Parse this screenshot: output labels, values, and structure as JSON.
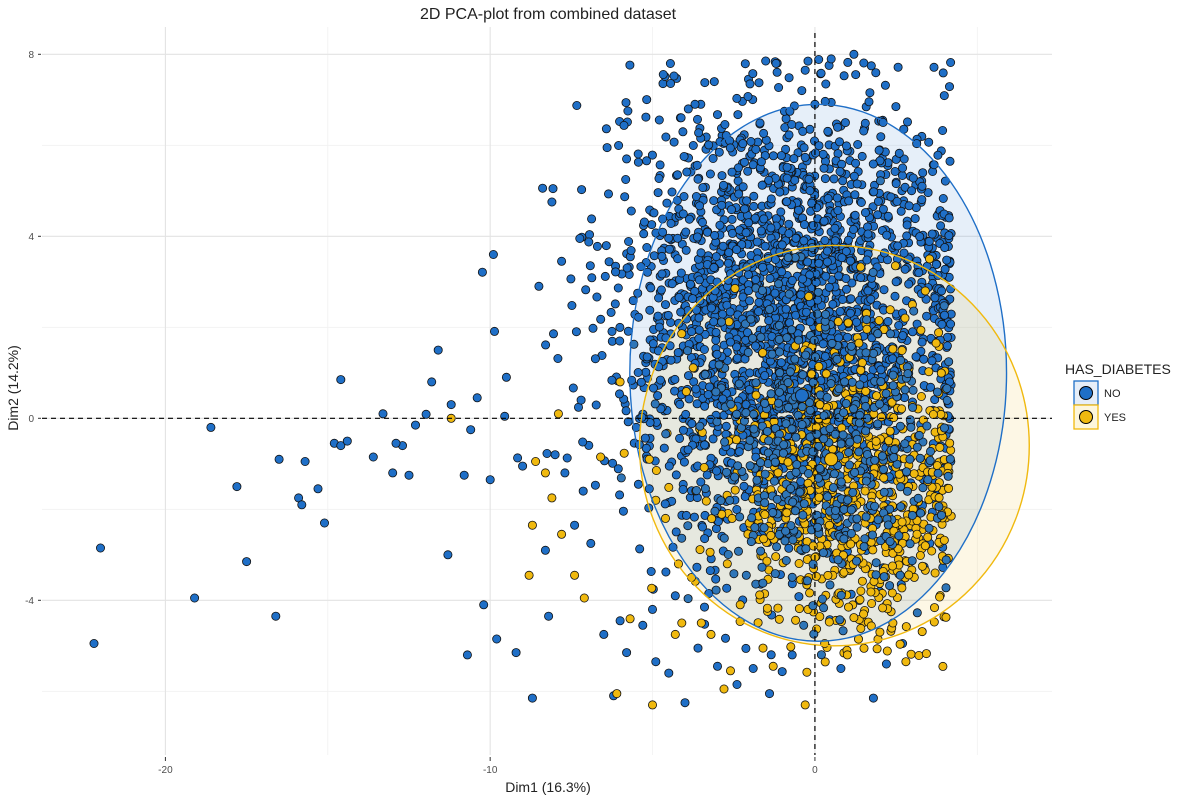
{
  "chart_data": {
    "type": "scatter",
    "title": "2D PCA-plot from combined dataset",
    "xlabel": "Dim1 (16.3%)",
    "ylabel": "Dim2 (14.2%)",
    "xlim": [
      -23.8,
      7.3
    ],
    "ylim": [
      -7.4,
      8.6
    ],
    "x_ticks": [
      -20,
      -10,
      0
    ],
    "x_tick_labels": [
      "-20",
      "-10",
      "0"
    ],
    "y_ticks": [
      -4,
      0,
      4,
      8
    ],
    "y_tick_labels": [
      "-4",
      "0",
      "4",
      "8"
    ],
    "grid": true,
    "reference_lines": {
      "x": 0,
      "y": 0,
      "style": "dashed"
    },
    "legend": {
      "title": "HAS_DIABETES",
      "position": "right",
      "entries": [
        {
          "label": "NO",
          "color": "#1f6fc7"
        },
        {
          "label": "YES",
          "color": "#f0b90f"
        }
      ]
    },
    "series": [
      {
        "name": "NO",
        "color": "#1f6fc7",
        "centroid": [
          -0.4,
          0.5
        ],
        "ellipse": {
          "cx": 0.1,
          "cy": 1.0,
          "rx": 5.8,
          "ry": 5.9
        },
        "core": {
          "mx": -0.8,
          "my": 2.2,
          "sx": 2.7,
          "sy": 2.4,
          "count": 2400
        },
        "points": [
          [
            -22.2,
            -4.95
          ],
          [
            -22.0,
            -2.85
          ],
          [
            -19.1,
            -3.95
          ],
          [
            -18.6,
            -0.2
          ],
          [
            -17.8,
            -1.5
          ],
          [
            -17.5,
            -3.15
          ],
          [
            -16.6,
            -4.35
          ],
          [
            -16.5,
            -0.9
          ],
          [
            -15.9,
            -1.75
          ],
          [
            -15.8,
            -1.9
          ],
          [
            -15.7,
            -0.95
          ],
          [
            -15.3,
            -1.55
          ],
          [
            -15.1,
            -2.3
          ],
          [
            -14.8,
            -0.55
          ],
          [
            -14.6,
            -0.6
          ],
          [
            -14.4,
            -0.5
          ],
          [
            -14.6,
            0.85
          ],
          [
            -13.6,
            -0.85
          ],
          [
            -13.3,
            0.1
          ],
          [
            -13.0,
            -1.2
          ],
          [
            -12.7,
            -0.6
          ],
          [
            -12.5,
            -1.25
          ],
          [
            -12.3,
            -0.15
          ],
          [
            -11.8,
            0.8
          ],
          [
            -11.3,
            -3.0
          ],
          [
            -11.2,
            0.3
          ],
          [
            -10.8,
            -1.25
          ],
          [
            -10.7,
            -5.2
          ],
          [
            -10.6,
            -0.25
          ],
          [
            -10.4,
            0.45
          ],
          [
            -10.2,
            -4.1
          ],
          [
            -10.0,
            -1.35
          ],
          [
            -9.8,
            -4.85
          ],
          [
            -9.5,
            0.9
          ],
          [
            -9.2,
            -5.15
          ],
          [
            -9.0,
            -1.05
          ],
          [
            -8.7,
            -6.15
          ],
          [
            -8.2,
            -4.35
          ],
          [
            -8.3,
            -2.9
          ],
          [
            -8.0,
            -0.8
          ],
          [
            -7.7,
            -1.2
          ],
          [
            -7.4,
            -2.35
          ],
          [
            -7.2,
            0.4
          ],
          [
            -6.9,
            -2.75
          ],
          [
            -6.5,
            -4.75
          ],
          [
            -6.2,
            -6.1
          ],
          [
            -6.0,
            -4.45
          ],
          [
            -5.8,
            -5.15
          ],
          [
            -5.5,
            -0.2
          ],
          [
            -5.3,
            -4.55
          ],
          [
            -5.1,
            -1.55
          ],
          [
            -4.9,
            -5.35
          ],
          [
            -5.0,
            -4.2
          ],
          [
            -4.5,
            -5.6
          ],
          [
            -4.3,
            -3.9
          ],
          [
            -4.6,
            2.5
          ],
          [
            -4.0,
            -6.25
          ],
          [
            -3.6,
            -5.05
          ],
          [
            -3.4,
            -4.15
          ],
          [
            -3.0,
            -5.45
          ],
          [
            -2.4,
            -5.85
          ],
          [
            -1.9,
            -5.5
          ],
          [
            -1.4,
            -6.05
          ],
          [
            -0.7,
            -5.2
          ],
          [
            0.8,
            -5.5
          ],
          [
            1.8,
            -6.15
          ],
          [
            2.2,
            -5.4
          ],
          [
            2.7,
            -4.95
          ],
          [
            3.9,
            1.0
          ],
          [
            4.1,
            0.05
          ],
          [
            -11.6,
            1.5
          ],
          [
            -12.9,
            -0.55
          ],
          [
            -9.9,
            3.6
          ],
          [
            -8.5,
            2.9
          ],
          [
            -7.8,
            3.45
          ],
          [
            -6.4,
            5.95
          ],
          [
            -5.8,
            5.7
          ],
          [
            -3.9,
            6.8
          ],
          [
            -2.0,
            7.35
          ],
          [
            -0.3,
            7.65
          ],
          [
            1.2,
            8.0
          ],
          [
            2.1,
            6.5
          ],
          [
            2.7,
            5.5
          ],
          [
            3.3,
            5.1
          ],
          [
            3.9,
            2.8
          ],
          [
            3.2,
            3.2
          ],
          [
            2.5,
            3.0
          ],
          [
            -3.1,
            7.4
          ],
          [
            -1.2,
            7.8
          ],
          [
            0.5,
            7.9
          ]
        ]
      },
      {
        "name": "YES",
        "color": "#f0b90f",
        "centroid": [
          0.5,
          -0.9
        ],
        "ellipse": {
          "cx": 0.6,
          "cy": -0.6,
          "rx": 6.0,
          "ry": 4.4
        },
        "core": {
          "mx": 1.0,
          "my": -1.6,
          "sx": 2.0,
          "sy": 1.7,
          "count": 700
        },
        "points": [
          [
            -11.2,
            0.0
          ],
          [
            -8.7,
            -2.35
          ],
          [
            -8.8,
            -3.45
          ],
          [
            -8.6,
            -0.95
          ],
          [
            -8.3,
            -1.2
          ],
          [
            -8.1,
            -1.75
          ],
          [
            -7.8,
            -2.55
          ],
          [
            -7.4,
            -3.45
          ],
          [
            -7.1,
            -3.95
          ],
          [
            -6.6,
            -0.85
          ],
          [
            -6.1,
            -6.05
          ],
          [
            -5.1,
            -0.9
          ],
          [
            -5.0,
            -6.3
          ],
          [
            -4.3,
            -4.75
          ],
          [
            -4.1,
            -4.5
          ],
          [
            -3.5,
            -4.5
          ],
          [
            -3.2,
            -4.75
          ],
          [
            -2.6,
            -5.55
          ],
          [
            -2.8,
            -5.95
          ],
          [
            -1.6,
            -5.05
          ],
          [
            -0.3,
            -6.3
          ],
          [
            0.3,
            -4.95
          ],
          [
            1.5,
            -4.3
          ],
          [
            2.0,
            -4.7
          ],
          [
            2.4,
            -4.5
          ],
          [
            2.8,
            -5.35
          ],
          [
            3.4,
            -2.8
          ],
          [
            3.7,
            -3.4
          ],
          [
            3.9,
            -2.1
          ],
          [
            3.0,
            2.5
          ],
          [
            3.4,
            2.8
          ],
          [
            2.9,
            1.1
          ],
          [
            -7.9,
            0.1
          ],
          [
            -6.0,
            0.8
          ],
          [
            -4.6,
            -2.2
          ],
          [
            -4.9,
            -1.8
          ],
          [
            -4.2,
            -3.2
          ],
          [
            -3.8,
            -3.5
          ],
          [
            -2.3,
            -4.1
          ],
          [
            1.0,
            -5.2
          ]
        ]
      }
    ]
  }
}
